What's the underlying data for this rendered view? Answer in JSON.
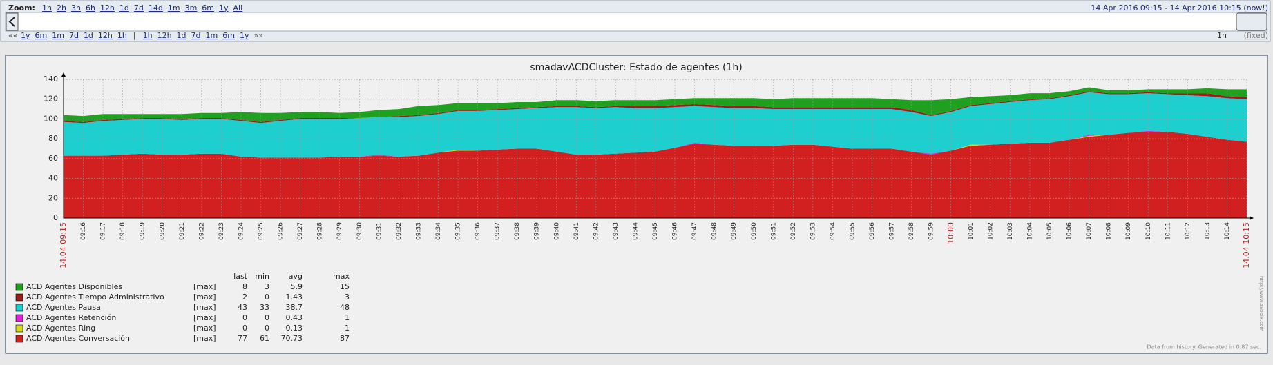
{
  "ui": {
    "zoom_label": "Zoom:",
    "zoom_links": [
      "1h",
      "2h",
      "3h",
      "6h",
      "12h",
      "1d",
      "7d",
      "14d",
      "1m",
      "3m",
      "6m",
      "1y",
      "All"
    ],
    "period": "14 Apr 2016 09:15  -  14 Apr 2016 10:15 (now!)",
    "nav_start": "««",
    "nav_back": [
      "1y",
      "6m",
      "1m",
      "7d",
      "1d",
      "12h",
      "1h"
    ],
    "separator": "|",
    "nav_fwd": [
      "1h",
      "12h",
      "1d",
      "7d",
      "1m",
      "6m",
      "1y"
    ],
    "nav_end": "»»",
    "period_len": "1h",
    "fixed": "(fixed)",
    "watermark": "http://www.zabbix.com",
    "footer": "Data from history. Generated in 0.87 sec."
  },
  "chart_data": {
    "type": "stacked_area",
    "title": "smadavACDCluster: Estado de agentes (1h)",
    "categories": [
      "14.04 09:15",
      "09:16",
      "09:17",
      "09:18",
      "09:19",
      "09:20",
      "09:21",
      "09:22",
      "09:23",
      "09:24",
      "09:25",
      "09:26",
      "09:27",
      "09:28",
      "09:29",
      "09:30",
      "09:31",
      "09:32",
      "09:33",
      "09:34",
      "09:35",
      "09:36",
      "09:37",
      "09:38",
      "09:39",
      "09:40",
      "09:41",
      "09:42",
      "09:43",
      "09:44",
      "09:45",
      "09:46",
      "09:47",
      "09:48",
      "09:49",
      "09:50",
      "09:51",
      "09:52",
      "09:53",
      "09:54",
      "09:55",
      "09:56",
      "09:57",
      "09:58",
      "09:59",
      "10:00",
      "10:01",
      "10:02",
      "10:03",
      "10:04",
      "10:05",
      "10:06",
      "10:07",
      "10:08",
      "10:09",
      "10:10",
      "10:11",
      "10:12",
      "10:13",
      "10:14",
      "14.04 10:15"
    ],
    "ylim": [
      0,
      140
    ],
    "yticks": [
      0,
      20,
      40,
      60,
      80,
      100,
      120,
      140
    ],
    "grid": true,
    "series": [
      {
        "name": "ACD Agentes Disponibles",
        "color": "#1fa01f",
        "values": [
          6,
          6,
          6,
          5,
          4,
          4,
          5,
          5,
          5,
          8,
          9,
          7,
          6,
          6,
          5,
          6,
          7,
          7,
          9,
          8,
          7,
          7,
          6,
          6,
          5,
          6,
          6,
          6,
          6,
          6,
          6,
          6,
          6,
          7,
          8,
          8,
          8,
          9,
          9,
          9,
          9,
          9,
          8,
          10,
          15,
          12,
          8,
          7,
          6,
          6,
          5,
          4,
          4,
          3,
          3,
          3,
          4,
          4,
          5,
          7,
          8
        ]
      },
      {
        "name": "ACD Agentes Tiempo Administrativo",
        "color": "#9c1c1c",
        "values": [
          1,
          1,
          1,
          1,
          1,
          1,
          1,
          1,
          1,
          1,
          1,
          1,
          1,
          1,
          1,
          0,
          0,
          1,
          1,
          1,
          1,
          1,
          1,
          1,
          1,
          1,
          1,
          1,
          1,
          2,
          2,
          2,
          2,
          2,
          2,
          2,
          2,
          2,
          2,
          2,
          2,
          2,
          2,
          2,
          1,
          1,
          1,
          1,
          1,
          1,
          1,
          1,
          1,
          1,
          1,
          1,
          1,
          2,
          3,
          2,
          2
        ]
      },
      {
        "name": "ACD Agentes Pausa",
        "color": "#1ecfcf",
        "values": [
          34,
          33,
          35,
          35,
          35,
          36,
          35,
          35,
          35,
          36,
          35,
          37,
          39,
          39,
          38,
          39,
          38,
          40,
          40,
          39,
          39,
          40,
          40,
          40,
          41,
          45,
          48,
          47,
          47,
          45,
          44,
          41,
          37,
          38,
          38,
          38,
          37,
          36,
          36,
          38,
          40,
          40,
          40,
          40,
          38,
          39,
          39,
          41,
          42,
          43,
          44,
          44,
          43,
          41,
          39,
          38,
          38,
          39,
          41,
          42,
          43
        ]
      },
      {
        "name": "ACD Agentes Retención",
        "color": "#e020e0",
        "values": [
          0,
          0,
          0,
          0,
          0,
          0,
          0,
          0,
          0,
          0,
          0,
          0,
          0,
          0,
          0,
          0,
          1,
          0,
          0,
          0,
          0,
          0,
          0,
          0,
          0,
          0,
          0,
          0,
          0,
          0,
          0,
          0,
          1,
          0,
          0,
          0,
          0,
          0,
          0,
          0,
          0,
          0,
          0,
          0,
          1,
          0,
          0,
          0,
          0,
          0,
          0,
          0,
          1,
          0,
          0,
          1,
          0,
          0,
          0,
          0,
          0
        ]
      },
      {
        "name": "ACD Agentes Ring",
        "color": "#d8d820",
        "values": [
          0,
          0,
          0,
          0,
          0,
          0,
          0,
          0,
          0,
          0,
          0,
          0,
          0,
          0,
          0,
          0,
          0,
          0,
          0,
          0,
          1,
          0,
          0,
          0,
          0,
          0,
          0,
          0,
          0,
          0,
          0,
          0,
          0,
          0,
          0,
          0,
          0,
          0,
          0,
          0,
          0,
          0,
          0,
          0,
          0,
          0,
          1,
          0,
          0,
          0,
          0,
          0,
          1,
          0,
          0,
          0,
          0,
          0,
          0,
          0,
          0
        ]
      },
      {
        "name": "ACD Agentes Conversación",
        "color": "#d21f1f",
        "values": [
          63,
          63,
          63,
          64,
          65,
          64,
          64,
          65,
          65,
          62,
          61,
          61,
          61,
          61,
          62,
          62,
          63,
          62,
          63,
          66,
          68,
          68,
          69,
          70,
          70,
          67,
          64,
          64,
          65,
          66,
          67,
          71,
          75,
          74,
          73,
          73,
          73,
          74,
          74,
          72,
          70,
          70,
          70,
          67,
          64,
          68,
          73,
          74,
          75,
          76,
          76,
          79,
          82,
          84,
          86,
          87,
          87,
          85,
          82,
          79,
          77
        ]
      }
    ],
    "legend_table": {
      "columns": [
        "last",
        "min",
        "avg",
        "max"
      ],
      "rows": [
        {
          "func": "[max]",
          "last": "8",
          "min": "3",
          "avg": "5.9",
          "max": "15"
        },
        {
          "func": "[max]",
          "last": "2",
          "min": "0",
          "avg": "1.43",
          "max": "3"
        },
        {
          "func": "[max]",
          "last": "43",
          "min": "33",
          "avg": "38.7",
          "max": "48"
        },
        {
          "func": "[max]",
          "last": "0",
          "min": "0",
          "avg": "0.43",
          "max": "1"
        },
        {
          "func": "[max]",
          "last": "0",
          "min": "0",
          "avg": "0.13",
          "max": "1"
        },
        {
          "func": "[max]",
          "last": "77",
          "min": "61",
          "avg": "70.73",
          "max": "87"
        }
      ]
    }
  }
}
